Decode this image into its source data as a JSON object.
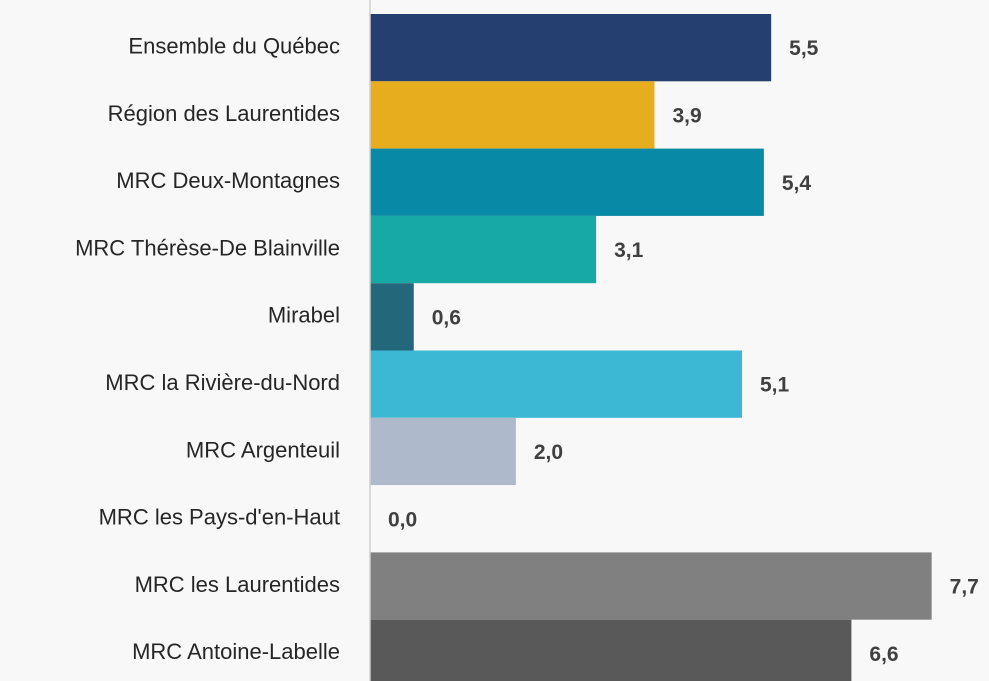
{
  "chart_data": {
    "type": "barh",
    "categories": [
      "Ensemble du Québec",
      "Région des Laurentides",
      "MRC Deux-Montagnes",
      "MRC Thérèse-De Blainville",
      "Mirabel",
      "MRC la Rivière-du-Nord",
      "MRC Argenteuil",
      "MRC les Pays-d'en-Haut",
      "MRC les Laurentides",
      "MRC Antoine-Labelle"
    ],
    "values": [
      5.5,
      3.9,
      5.4,
      3.1,
      0.6,
      5.1,
      2.0,
      0.0,
      7.7,
      6.6
    ],
    "value_labels": [
      "5,5",
      "3,9",
      "5,4",
      "3,1",
      "0,6",
      "5,1",
      "2,0",
      "0,0",
      "7,7",
      "6,6"
    ],
    "colors": [
      "#243f70",
      "#e6ad1f",
      "#0889a6",
      "#17a9a4",
      "#23677a",
      "#3db8d4",
      "#aeb9cc",
      "#aeb9cc",
      "#808080",
      "#595959"
    ],
    "xlim": [
      0,
      8.5
    ]
  }
}
